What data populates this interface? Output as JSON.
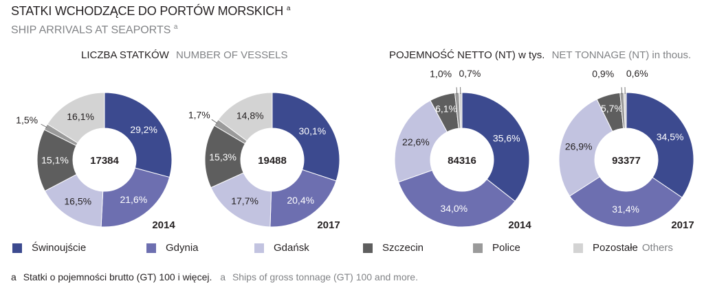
{
  "title": {
    "pl": "STATKI WCHODZĄCE DO PORTÓW MORSKICH",
    "en": "SHIP ARRIVALS AT SEAPORTS",
    "note_marker": "a"
  },
  "sections": {
    "vessels": {
      "pl": "LICZBA STATKÓW",
      "en": "NUMBER OF VESSELS"
    },
    "tonnage": {
      "pl": "POJEMNOŚĆ NETTO (NT) w tys.",
      "en": "NET TONNAGE (NT) in thous."
    }
  },
  "legend": [
    {
      "key": "swinoujscie",
      "pl": "Świnoujście",
      "en": "",
      "color": "#3c4a8f"
    },
    {
      "key": "gdynia",
      "pl": "Gdynia",
      "en": "",
      "color": "#6d6fb0"
    },
    {
      "key": "gdansk",
      "pl": "Gdańsk",
      "en": "",
      "color": "#c2c3e0"
    },
    {
      "key": "szczecin",
      "pl": "Szczecin",
      "en": "",
      "color": "#5e5e5e"
    },
    {
      "key": "police",
      "pl": "Police",
      "en": "",
      "color": "#9a9a9a"
    },
    {
      "key": "others",
      "pl": "Pozostałe",
      "en": "Others",
      "color": "#d3d3d3"
    }
  ],
  "footnote": {
    "marker": "a",
    "pl": "Statki o pojemności brutto (GT) 100 i więcej.",
    "en": "Ships of gross tonnage (GT) 100 and more."
  },
  "chart_data": [
    {
      "type": "pie",
      "donut": true,
      "group": "vessels",
      "year": "2014",
      "total": "17384",
      "categories": [
        "Świnoujście",
        "Gdynia",
        "Gdańsk",
        "Szczecin",
        "Police",
        "Pozostałe"
      ],
      "values": [
        29.2,
        21.6,
        16.5,
        15.1,
        1.5,
        16.1
      ],
      "labels": [
        "29,2%",
        "21,6%",
        "16,5%",
        "15,1%",
        "1,5%",
        "16,1%"
      ]
    },
    {
      "type": "pie",
      "donut": true,
      "group": "vessels",
      "year": "2017",
      "total": "19488",
      "categories": [
        "Świnoujście",
        "Gdynia",
        "Gdańsk",
        "Szczecin",
        "Police",
        "Pozostałe"
      ],
      "values": [
        30.1,
        20.4,
        17.7,
        15.3,
        1.7,
        14.8
      ],
      "labels": [
        "30,1%",
        "20,4%",
        "17,7%",
        "15,3%",
        "1,7%",
        "14,8%"
      ]
    },
    {
      "type": "pie",
      "donut": true,
      "group": "tonnage",
      "year": "2014",
      "total": "84316",
      "categories": [
        "Świnoujście",
        "Gdynia",
        "Gdańsk",
        "Szczecin",
        "Police",
        "Pozostałe"
      ],
      "values": [
        35.6,
        34.0,
        22.6,
        6.1,
        1.0,
        0.7
      ],
      "labels": [
        "35,6%",
        "34,0%",
        "22,6%",
        "6,1%",
        "1,0%",
        "0,7%"
      ]
    },
    {
      "type": "pie",
      "donut": true,
      "group": "tonnage",
      "year": "2017",
      "total": "93377",
      "categories": [
        "Świnoujście",
        "Gdynia",
        "Gdańsk",
        "Szczecin",
        "Police",
        "Pozostałe"
      ],
      "values": [
        34.5,
        31.4,
        26.9,
        5.7,
        0.9,
        0.6
      ],
      "labels": [
        "34,5%",
        "31,4%",
        "26,9%",
        "5,7%",
        "0,9%",
        "0,6%"
      ]
    }
  ]
}
